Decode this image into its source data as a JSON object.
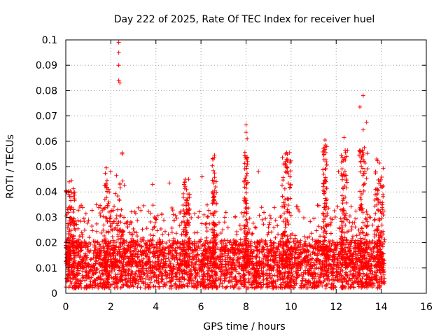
{
  "chart_data": {
    "type": "scatter",
    "title": "Day 222 of 2025, Rate Of TEC Index for receiver huel",
    "xlabel": "GPS time / hours",
    "ylabel": "ROTI / TECUs",
    "xlim": [
      0,
      16
    ],
    "ylim": [
      0,
      0.1
    ],
    "x_ticks": [
      "0",
      "2",
      "4",
      "6",
      "8",
      "10",
      "12",
      "14",
      "16"
    ],
    "y_ticks": [
      "0",
      "0.01",
      "0.02",
      "0.03",
      "0.04",
      "0.05",
      "0.06",
      "0.07",
      "0.08",
      "0.09",
      "0.1"
    ],
    "grid": true,
    "marker": "plus",
    "color": "#ff0000",
    "outliers": [
      [
        2.35,
        0.099
      ],
      [
        2.35,
        0.095
      ],
      [
        2.35,
        0.09
      ],
      [
        2.35,
        0.084
      ],
      [
        2.4,
        0.083
      ],
      [
        13.2,
        0.078
      ],
      [
        13.05,
        0.0735
      ],
      [
        13.35,
        0.0675
      ],
      [
        13.2,
        0.0645
      ],
      [
        8.0,
        0.0665
      ],
      [
        8.0,
        0.0635
      ],
      [
        8.05,
        0.061
      ],
      [
        11.5,
        0.0605
      ],
      [
        12.35,
        0.0615
      ],
      [
        2.5,
        0.0555
      ],
      [
        2.5,
        0.055
      ],
      [
        6.6,
        0.0545
      ],
      [
        9.8,
        0.0555
      ],
      [
        9.75,
        0.055
      ],
      [
        13.25,
        0.0575
      ],
      [
        13.2,
        0.0555
      ],
      [
        12.4,
        0.0565
      ],
      [
        11.55,
        0.0555
      ],
      [
        8.0,
        0.053
      ],
      [
        13.8,
        0.053
      ],
      [
        5.3,
        0.045
      ],
      [
        5.45,
        0.045
      ],
      [
        6.05,
        0.046
      ],
      [
        4.6,
        0.0435
      ],
      [
        3.85,
        0.043
      ],
      [
        0.15,
        0.044
      ],
      [
        0.25,
        0.0445
      ],
      [
        1.8,
        0.0495
      ],
      [
        8.55,
        0.048
      ],
      [
        9.95,
        0.046
      ],
      [
        11.45,
        0.047
      ],
      [
        12.1,
        0.048
      ],
      [
        13.95,
        0.036
      ],
      [
        14.05,
        0.035
      ]
    ],
    "bursts": [
      {
        "x_start": 0.0,
        "x_end": 0.4,
        "y_max": 0.044
      },
      {
        "x_start": 1.7,
        "x_end": 2.6,
        "y_max": 0.05
      },
      {
        "x_start": 5.2,
        "x_end": 5.5,
        "y_max": 0.045
      },
      {
        "x_start": 6.5,
        "x_end": 6.7,
        "y_max": 0.054
      },
      {
        "x_start": 7.9,
        "x_end": 8.1,
        "y_max": 0.056
      },
      {
        "x_start": 9.6,
        "x_end": 10.0,
        "y_max": 0.056
      },
      {
        "x_start": 11.4,
        "x_end": 11.6,
        "y_max": 0.06
      },
      {
        "x_start": 12.2,
        "x_end": 12.5,
        "y_max": 0.057
      },
      {
        "x_start": 13.0,
        "x_end": 13.4,
        "y_max": 0.058
      },
      {
        "x_start": 13.7,
        "x_end": 14.1,
        "y_max": 0.053
      }
    ],
    "noise": {
      "x_start": 0.0,
      "x_end": 14.15,
      "y_low": 0.002,
      "y_median": 0.011,
      "y_high": 0.035,
      "count": 3800
    }
  }
}
